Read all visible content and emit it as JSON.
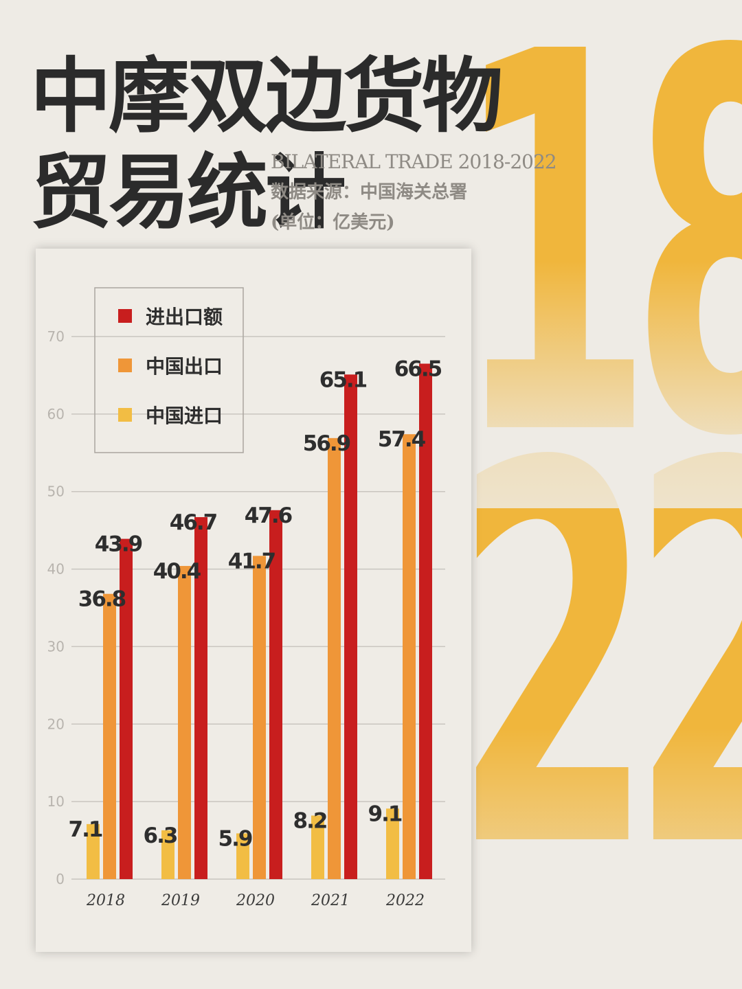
{
  "title": {
    "line1": "中摩双边货物",
    "line2": "贸易统计"
  },
  "subtitle": {
    "english": "BILATERAL TRADE 2018-2022",
    "source": "数据来源：中国海关总署",
    "unit": "(单位：亿美元)"
  },
  "decor": {
    "top_digits": "18",
    "bottom_digits": "22"
  },
  "colors": {
    "total": "#c81e1e",
    "export": "#ef9638",
    "import": "#f2bd44",
    "digits": "#f0b63c"
  },
  "chart_data": {
    "type": "bar",
    "categories": [
      "2018",
      "2019",
      "2020",
      "2021",
      "2022"
    ],
    "series": [
      {
        "name": "中国进口",
        "values": [
          7.1,
          6.3,
          5.9,
          8.2,
          9.1
        ]
      },
      {
        "name": "中国出口",
        "values": [
          36.8,
          40.4,
          41.7,
          56.9,
          57.4
        ]
      },
      {
        "name": "进出口额",
        "values": [
          43.9,
          46.7,
          47.6,
          65.1,
          66.5
        ]
      }
    ],
    "legend_order": [
      "进出口额",
      "中国出口",
      "中国进口"
    ],
    "ylim": [
      0,
      70
    ],
    "yticks": [
      0,
      10,
      20,
      30,
      40,
      50,
      60,
      70
    ],
    "grid": true,
    "legend_position": "top-left"
  }
}
